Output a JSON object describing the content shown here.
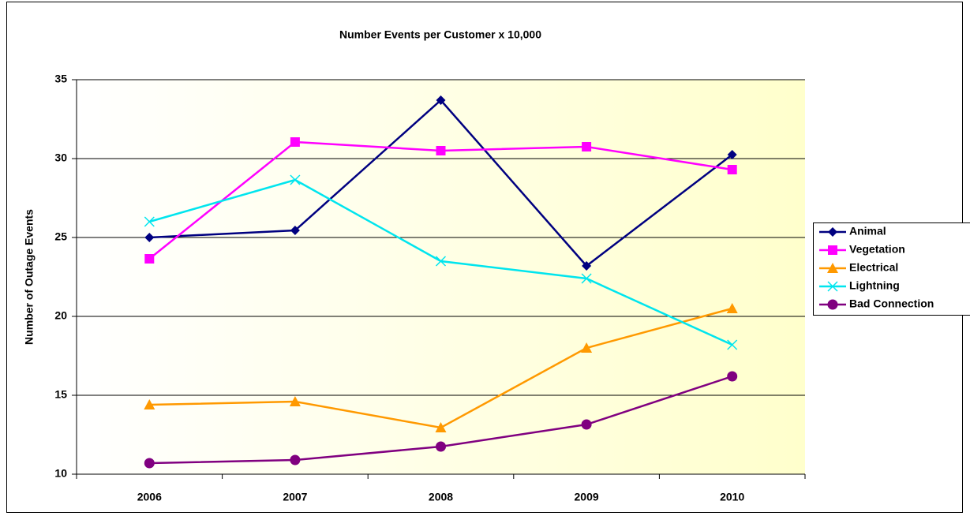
{
  "chart_data": {
    "type": "line",
    "title": "Number Events per Customer x 10,000",
    "ylabel": "Number of Outage Events",
    "categories": [
      "2006",
      "2007",
      "2008",
      "2009",
      "2010"
    ],
    "series": [
      {
        "name": "Animal",
        "color": "#000080",
        "marker": "diamond",
        "values": [
          25.0,
          25.45,
          33.7,
          23.2,
          30.25
        ]
      },
      {
        "name": "Vegetation",
        "color": "#ff00ff",
        "marker": "square",
        "values": [
          23.65,
          31.05,
          30.5,
          30.75,
          29.3
        ]
      },
      {
        "name": "Electrical",
        "color": "#ff9900",
        "marker": "triangle",
        "values": [
          14.4,
          14.6,
          12.95,
          18.0,
          20.5
        ]
      },
      {
        "name": "Lightning",
        "color": "#00e5ee",
        "marker": "x",
        "values": [
          26.0,
          28.65,
          23.5,
          22.4,
          18.2
        ]
      },
      {
        "name": "Bad Connection",
        "color": "#800080",
        "marker": "circle",
        "values": [
          10.7,
          10.9,
          11.75,
          13.15,
          16.2
        ]
      }
    ],
    "ylim": [
      10,
      35
    ],
    "yticks": [
      10,
      15,
      20,
      25,
      30,
      35
    ],
    "grid": true,
    "legend": "right"
  }
}
